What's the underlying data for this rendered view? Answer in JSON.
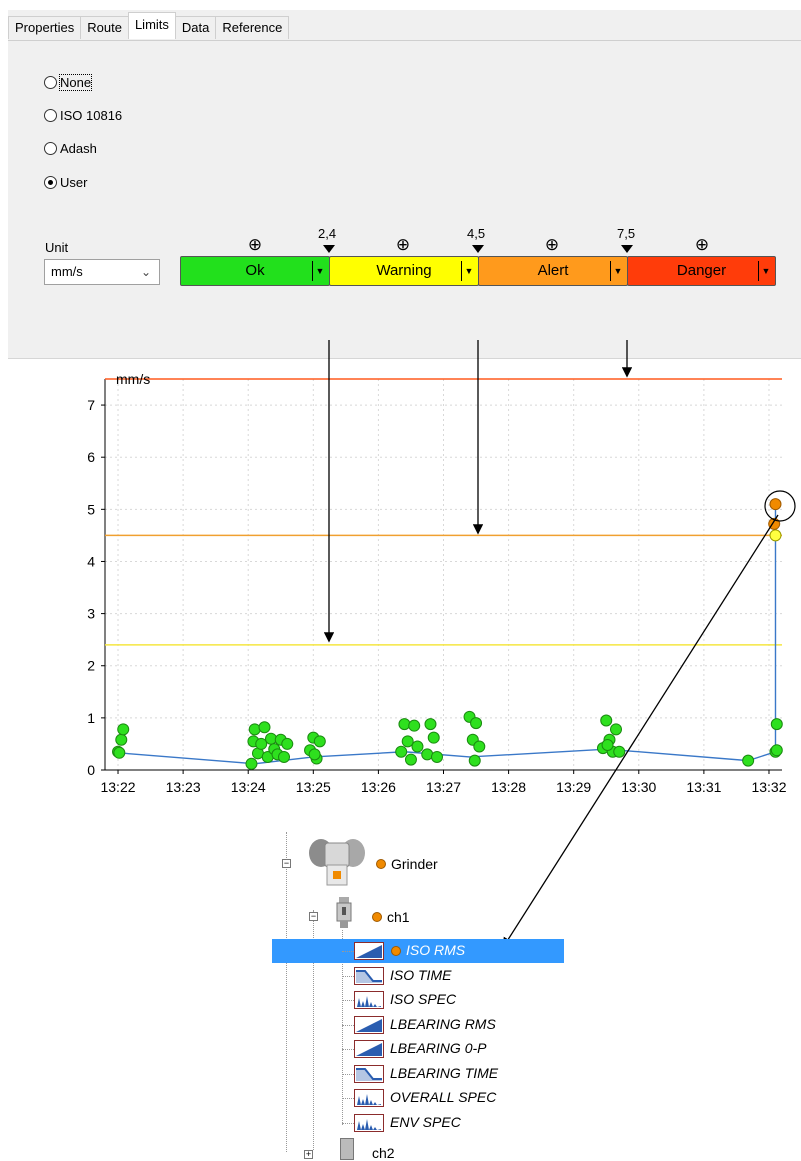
{
  "tabs": [
    "Properties",
    "Route",
    "Limits",
    "Data",
    "Reference"
  ],
  "active_tab": "Limits",
  "radios": [
    {
      "label": "None",
      "checked": false
    },
    {
      "label": "ISO 10816",
      "checked": false
    },
    {
      "label": "Adash",
      "checked": false
    },
    {
      "label": "User",
      "checked": true
    }
  ],
  "unit": {
    "label": "Unit",
    "value": "mm/s"
  },
  "limits": {
    "thresholds": [
      "2,4",
      "4,5",
      "7,5"
    ],
    "segments": [
      {
        "label": "Ok",
        "color": "#22e01c"
      },
      {
        "label": "Warning",
        "color": "#ffff00"
      },
      {
        "label": "Alert",
        "color": "#ff9a1c"
      },
      {
        "label": "Danger",
        "color": "#ff3c0a"
      }
    ],
    "add_symbol": "⊕"
  },
  "chart_data": {
    "type": "line",
    "ylabel": "mm/s",
    "ylim": [
      0,
      7.5
    ],
    "yticks": [
      0,
      1,
      2,
      3,
      4,
      5,
      6,
      7
    ],
    "xticks": [
      "13:22",
      "13:23",
      "13:24",
      "13:25",
      "13:26",
      "13:27",
      "13:28",
      "13:29",
      "13:30",
      "13:31",
      "13:32"
    ],
    "grid": true,
    "limit_lines": [
      {
        "value": 2.4,
        "color": "#f5e640"
      },
      {
        "value": 4.5,
        "color": "#f0a030"
      },
      {
        "value": 7.5,
        "color": "#ff5a1e"
      }
    ],
    "series": [
      {
        "x": [
          22.0,
          22.05,
          22.08,
          22.02,
          24.05,
          24.08,
          24.1,
          24.15,
          24.2,
          24.25,
          24.3,
          24.35,
          24.4,
          24.45,
          24.5,
          24.55,
          24.6,
          24.95,
          25.0,
          25.05,
          25.1,
          25.02,
          26.35,
          26.4,
          26.45,
          26.5,
          26.55,
          26.6,
          26.75,
          26.8,
          26.85,
          26.9,
          27.4,
          27.45,
          27.5,
          27.55,
          27.48,
          29.45,
          29.5,
          29.55,
          29.6,
          29.65,
          29.7,
          29.52,
          31.68,
          32.1,
          32.12,
          32.1,
          32.08,
          32.1,
          32.12
        ],
        "y": [
          0.35,
          0.58,
          0.78,
          0.33,
          0.12,
          0.55,
          0.78,
          0.32,
          0.5,
          0.82,
          0.25,
          0.6,
          0.4,
          0.3,
          0.58,
          0.25,
          0.5,
          0.38,
          0.62,
          0.22,
          0.55,
          0.3,
          0.35,
          0.88,
          0.55,
          0.2,
          0.85,
          0.45,
          0.3,
          0.88,
          0.62,
          0.25,
          1.02,
          0.58,
          0.9,
          0.45,
          0.18,
          0.42,
          0.95,
          0.58,
          0.35,
          0.78,
          0.35,
          0.48,
          0.18,
          0.35,
          0.88,
          4.5,
          4.72,
          5.1,
          0.38
        ],
        "line_x": [
          22.0,
          24.1,
          25.0,
          26.4,
          27.4,
          29.5,
          31.68,
          32.1,
          32.1
        ],
        "line_y": [
          0.33,
          0.12,
          0.25,
          0.35,
          0.25,
          0.4,
          0.18,
          0.35,
          5.1
        ]
      }
    ]
  },
  "tree": {
    "root": {
      "label": "Grinder"
    },
    "channel": {
      "label": "ch1"
    },
    "items": [
      {
        "label": "ISO RMS",
        "selected": true,
        "icon": "trend-icon"
      },
      {
        "label": "ISO TIME",
        "selected": false,
        "icon": "waveform-icon"
      },
      {
        "label": "ISO SPEC",
        "selected": false,
        "icon": "spectrum-icon"
      },
      {
        "label": "LBEARING RMS",
        "selected": false,
        "icon": "trend-icon"
      },
      {
        "label": "LBEARING 0-P",
        "selected": false,
        "icon": "trend-icon"
      },
      {
        "label": "LBEARING TIME",
        "selected": false,
        "icon": "waveform-icon"
      },
      {
        "label": "OVERALL SPEC",
        "selected": false,
        "icon": "spectrum-icon"
      },
      {
        "label": "ENV SPEC",
        "selected": false,
        "icon": "spectrum-icon"
      }
    ],
    "channel2": {
      "label": "ch2"
    }
  }
}
